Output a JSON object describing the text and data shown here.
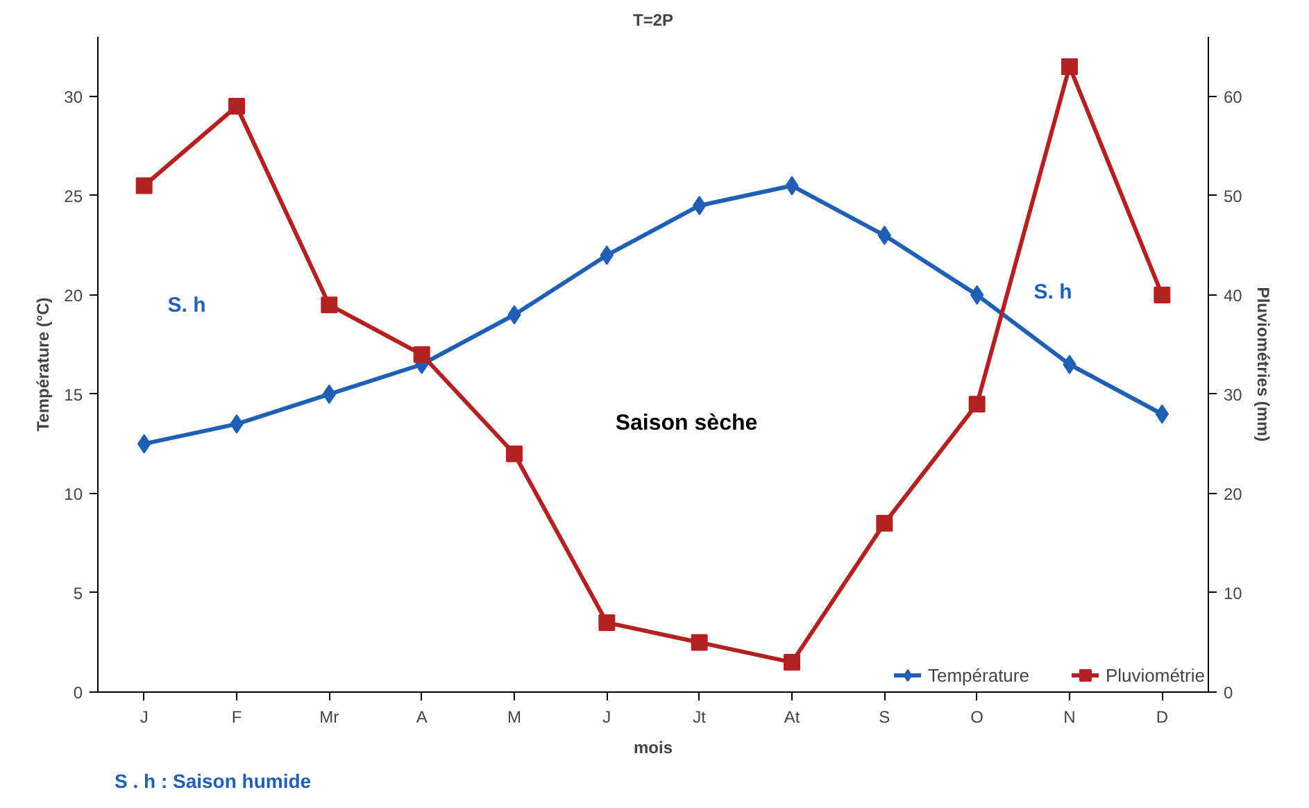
{
  "chart_data": {
    "type": "line",
    "title": "T=2P",
    "xlabel": "mois",
    "ylabel": "Température (°C)",
    "y2label": "Pluviométries (mm)",
    "categories": [
      "J",
      "F",
      "Mr",
      "A",
      "M",
      "J",
      "Jt",
      "At",
      "S",
      "O",
      "N",
      "D"
    ],
    "series": [
      {
        "name": "Température",
        "color": "#1f5fb4",
        "marker": "diamond",
        "values": [
          12.5,
          13.5,
          15,
          16.5,
          19,
          22,
          24.5,
          25.5,
          23,
          20,
          16.5,
          14
        ]
      },
      {
        "name": "Pluviométrie",
        "color": "#b22222",
        "marker": "square",
        "axis": "y2",
        "values": [
          51,
          59,
          39,
          34,
          24,
          7,
          5,
          3,
          17,
          29,
          63,
          40
        ]
      }
    ],
    "ylim": [
      0,
      33
    ],
    "yticks": [
      0,
      5,
      10,
      15,
      20,
      25,
      30
    ],
    "y2lim": [
      0,
      66
    ],
    "y2ticks": [
      0,
      10,
      20,
      30,
      40,
      50,
      60
    ],
    "annotations": [
      "S. h",
      "S. h",
      "Saison sèche",
      "S . h : Saison humide"
    ],
    "grid": false,
    "legend": "bottom right",
    "line_style": "solid"
  }
}
